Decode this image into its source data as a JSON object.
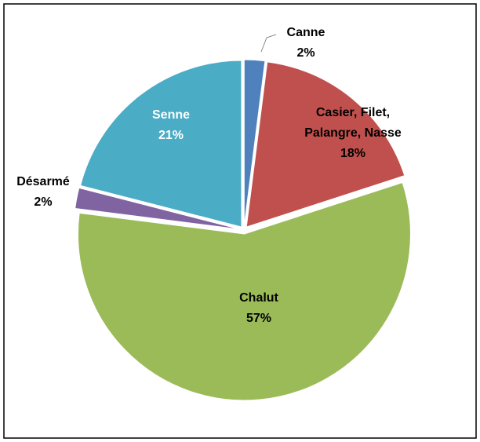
{
  "chart_data": {
    "type": "pie",
    "categories": [
      "Canne",
      "Casier, Filet, Palangre, Nasse",
      "Chalut",
      "Désarmé",
      "Senne"
    ],
    "values": [
      2,
      18,
      57,
      2,
      21
    ],
    "value_labels": [
      "2%",
      "18%",
      "57%",
      "2%",
      "21%"
    ],
    "colors": [
      "#4f81bd",
      "#c0504d",
      "#9bbb59",
      "#8064a2",
      "#4bacc6"
    ]
  }
}
